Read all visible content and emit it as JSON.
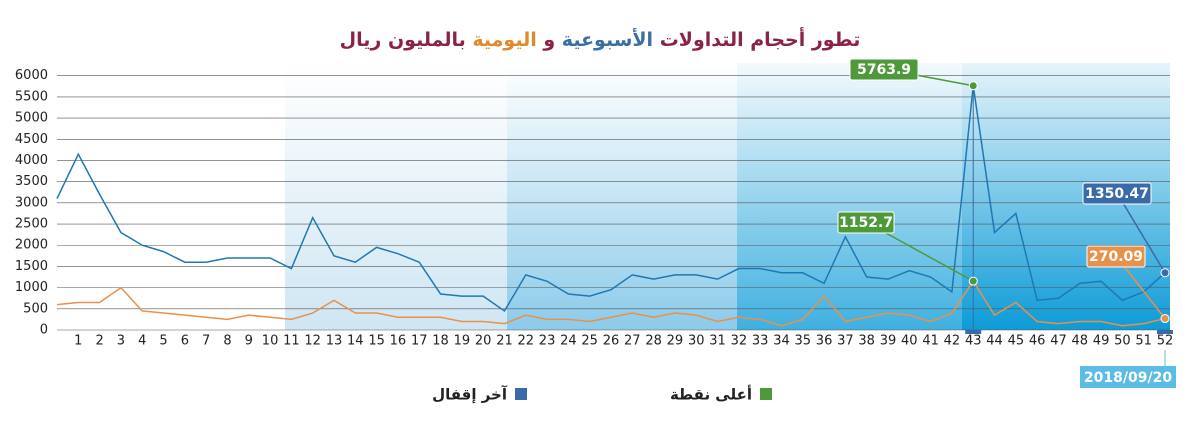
{
  "chart_data": {
    "type": "line",
    "title_parts": [
      {
        "text": "تطور أحجام التداولات",
        "color": "#8b2346"
      },
      {
        "text": "الأسبوعية",
        "color": "#3a6ea5"
      },
      {
        "text": "و",
        "color": "#8b2346"
      },
      {
        "text": "اليومية",
        "color": "#e08a2e"
      },
      {
        "text": "بالمليون ريال",
        "color": "#8b2346"
      }
    ],
    "categories": [
      null,
      "1",
      "2",
      "3",
      "4",
      "5",
      "6",
      "7",
      "8",
      "9",
      "10",
      "11",
      "12",
      "13",
      "14",
      "15",
      "16",
      "17",
      "18",
      "19",
      "20",
      "21",
      "22",
      "23",
      "24",
      "25",
      "26",
      "27",
      "28",
      "29",
      "30",
      "31",
      "32",
      "33",
      "34",
      "35",
      "36",
      "37",
      "38",
      "39",
      "40",
      "41",
      "42",
      "43",
      "44",
      "45",
      "46",
      "47",
      "48",
      "49",
      "50",
      "51",
      "52"
    ],
    "series": [
      {
        "name": "الأسبوعية",
        "color": "#1f78b4",
        "values": [
          3100,
          4150,
          3200,
          2300,
          2000,
          1850,
          1600,
          1600,
          1700,
          1700,
          1700,
          1450,
          2650,
          1750,
          1600,
          1950,
          1800,
          1600,
          850,
          800,
          800,
          450,
          1300,
          1150,
          850,
          800,
          950,
          1300,
          1200,
          1300,
          1300,
          1200,
          1450,
          1450,
          1350,
          1350,
          1100,
          2200,
          1250,
          1200,
          1400,
          1250,
          900,
          5763.9,
          2300,
          2750,
          700,
          750,
          1100,
          1150,
          700,
          900,
          1350.47
        ]
      },
      {
        "name": "اليومية",
        "color": "#e8914a",
        "values": [
          600,
          650,
          650,
          1000,
          450,
          400,
          350,
          300,
          250,
          350,
          300,
          250,
          400,
          700,
          400,
          400,
          300,
          300,
          300,
          200,
          200,
          150,
          350,
          250,
          250,
          200,
          300,
          400,
          300,
          400,
          350,
          200,
          300,
          250,
          100,
          250,
          800,
          200,
          300,
          400,
          350,
          200,
          400,
          1152.7,
          350,
          650,
          200,
          150,
          200,
          200,
          100,
          150,
          270.09
        ]
      }
    ],
    "ylim": [
      0,
      6300
    ],
    "yticks": [
      0,
      500,
      1000,
      1500,
      2000,
      2500,
      3000,
      3500,
      4000,
      4500,
      5000,
      5500,
      6000
    ],
    "grid": true,
    "annotations": [
      {
        "text": "2018/09/20",
        "color": "#5bbce4"
      }
    ],
    "legend": [
      {
        "label": "أعلى نقطة",
        "color": "#4e9a3a"
      },
      {
        "label": "آخر إقفال",
        "color": "#3b6aa8"
      }
    ]
  }
}
